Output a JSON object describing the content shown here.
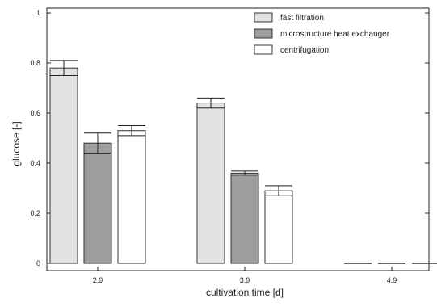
{
  "chart_data": {
    "type": "bar",
    "xlabel": "cultivation time [d]",
    "ylabel": "glucose [-]",
    "ylim": [
      0,
      1
    ],
    "yticks": [
      0,
      0.2,
      0.4,
      0.6,
      0.8,
      1
    ],
    "ytick_labels": [
      "0",
      "0.2",
      "0.4",
      "0.6",
      "0.8",
      "1"
    ],
    "categories": [
      "2.9",
      "3.9",
      "4.9"
    ],
    "legend_position": "top-right",
    "series": [
      {
        "name": "fast filtration",
        "color": "#e2e2e2",
        "values": [
          0.78,
          0.64,
          0.0
        ],
        "errors": [
          0.03,
          0.02,
          0.0
        ]
      },
      {
        "name": "microstructure heat exchanger",
        "color": "#9e9e9e",
        "values": [
          0.48,
          0.36,
          0.0
        ],
        "errors": [
          0.04,
          0.008,
          0.0
        ]
      },
      {
        "name": "centrifugation",
        "color": "#ffffff",
        "values": [
          0.53,
          0.29,
          0.0
        ],
        "errors": [
          0.02,
          0.02,
          0.0
        ]
      }
    ]
  }
}
